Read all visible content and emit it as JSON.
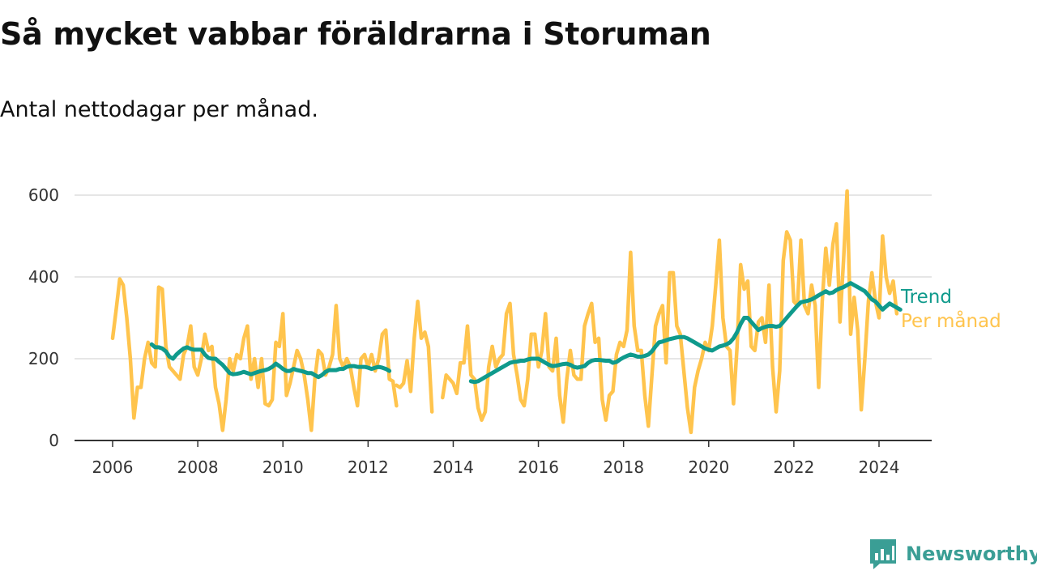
{
  "header": {
    "title": "Så mycket vabbar föräldrarna i Storuman",
    "subtitle": "Antal nettodagar per månad."
  },
  "brand": {
    "name": "Newsworthy",
    "icon": "newsworthy-logo-icon"
  },
  "colors": {
    "monthly": "#ffc44d",
    "trend": "#0f9a8c",
    "grid": "#dddddd",
    "axis": "#333333",
    "text": "#333333",
    "brand": "#3a9e95"
  },
  "chart_data": {
    "type": "line",
    "title": "Så mycket vabbar föräldrarna i Storuman",
    "subtitle": "Antal nettodagar per månad.",
    "xlim": [
      "2005-01",
      "2025-03"
    ],
    "ylim": [
      0,
      600
    ],
    "x_ticks": [
      "2006",
      "2008",
      "2010",
      "2012",
      "2014",
      "2016",
      "2018",
      "2020",
      "2022",
      "2024"
    ],
    "y_ticks": [
      0,
      200,
      400,
      600
    ],
    "grid": "horizontal",
    "legend": "inline-right",
    "series": [
      {
        "name": "Per månad",
        "color": "#ffc44d",
        "segments": [
          {
            "start": "2006-01",
            "values": [
              250,
              320,
              395,
              380,
              300,
              200,
              55,
              130,
              130,
              200,
              240,
              190,
              180,
              375,
              370,
              230,
              180,
              170,
              160,
              150,
              210,
              230,
              280,
              180,
              160,
              200,
              260,
              220,
              230,
              130,
              90,
              25,
              100,
              200,
              170,
              210,
              200,
              250,
              280,
              150,
              200,
              130,
              200,
              90,
              85,
              100,
              240,
              230,
              310,
              110,
              140,
              180,
              220,
              200,
              160,
              100,
              25,
              150,
              220,
              210,
              160,
              180,
              210,
              330,
              200,
              180,
              200,
              180,
              130,
              85,
              200,
              210,
              180,
              210,
              170,
              200,
              260,
              270,
              150,
              145,
              85
            ]
          },
          {
            "start": "2012-09",
            "values": [
              135,
              130,
              140,
              195,
              120,
              250,
              340,
              250,
              265,
              230,
              70
            ]
          },
          {
            "start": "2013-10",
            "values": [
              105,
              160,
              150,
              140,
              115,
              190,
              190,
              280,
              160,
              150,
              80,
              50,
              70,
              180,
              230,
              180,
              200,
              210,
              310,
              335,
              210,
              160,
              100,
              85,
              150,
              260,
              260,
              180,
              220,
              310,
              180,
              170,
              250,
              110,
              45,
              150,
              220,
              160,
              150,
              150,
              280,
              310,
              335,
              240,
              250,
              100,
              50,
              110,
              120,
              210,
              240,
              230,
              270,
              460,
              280,
              220,
              220,
              110,
              35,
              160,
              280,
              310,
              330,
              190,
              410,
              410,
              280,
              260,
              170,
              80,
              20,
              130,
              170,
              200,
              240,
              220,
              280,
              380,
              490,
              300,
              230,
              220,
              90,
              230,
              430,
              370,
              390,
              230,
              220,
              290,
              300,
              240,
              380,
              180,
              70,
              170,
              440,
              510,
              490,
              340,
              330,
              490,
              330,
              310,
              380,
              330,
              130,
              340,
              470,
              380,
              480,
              530,
              290,
              440,
              610,
              260,
              350,
              270,
              75,
              200,
              340,
              410,
              340,
              300,
              500,
              400,
              360,
              390,
              310
            ]
          }
        ]
      },
      {
        "name": "Trend",
        "color": "#0f9a8c",
        "segments": [
          {
            "start": "2006-12",
            "values": [
              235,
              228,
              228,
              225,
              218,
              205,
              200,
              210,
              218,
              225,
              228,
              224,
              222,
              222,
              222,
              210,
              202,
              200,
              200,
              192,
              185,
              175,
              165,
              162,
              163,
              165,
              168,
              165,
              162,
              165,
              168,
              170,
              172,
              175,
              180,
              188,
              182,
              175,
              170,
              170,
              175,
              172,
              170,
              168,
              165,
              165,
              160,
              155,
              160,
              168,
              172,
              172,
              172,
              175,
              175,
              180,
              182,
              182,
              180,
              180,
              180,
              178,
              175,
              178,
              180,
              178,
              175,
              170
            ]
          },
          {
            "start": "2014-06",
            "values": [
              145,
              143,
              145,
              150,
              155,
              160,
              165,
              170,
              175,
              180,
              185,
              190,
              192,
              193,
              195,
              195,
              198,
              200,
              200,
              200,
              195,
              190,
              185,
              182,
              183,
              185,
              187,
              188,
              185,
              180,
              178,
              180,
              182,
              190,
              195,
              197,
              197,
              196,
              195,
              195,
              190,
              192,
              198,
              203,
              207,
              210,
              208,
              205,
              205,
              207,
              210,
              218,
              230,
              240,
              242,
              245,
              248,
              250,
              252,
              253,
              253,
              250,
              245,
              240,
              235,
              230,
              225,
              222,
              220,
              225,
              230,
              232,
              235,
              240,
              250,
              265,
              285,
              300,
              300,
              290,
              280,
              270,
              275,
              278,
              280,
              280,
              278,
              280,
              290,
              300,
              310,
              320,
              330,
              338,
              340,
              342,
              345,
              350,
              355,
              360,
              365,
              360,
              362,
              368,
              372,
              375,
              380,
              385,
              380,
              375,
              370,
              365,
              355,
              345,
              340,
              330,
              320,
              328,
              335,
              330,
              325,
              320
            ]
          }
        ]
      }
    ]
  }
}
